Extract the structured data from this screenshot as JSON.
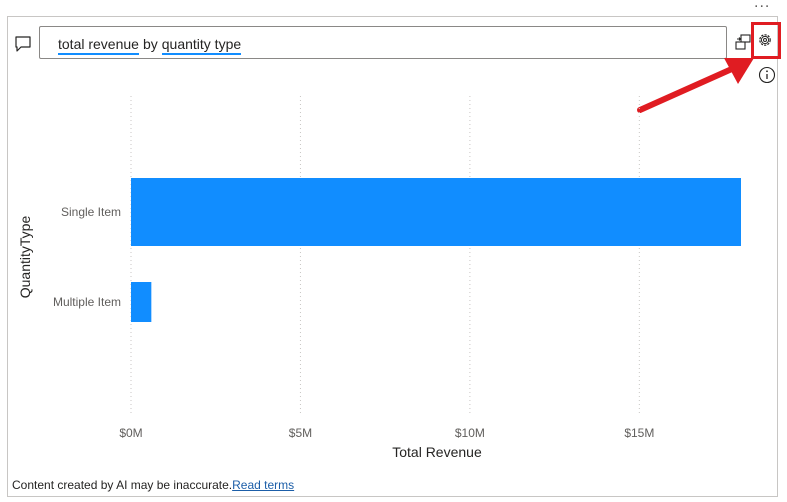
{
  "toolbar": {
    "more_options": "...",
    "query_terms": [
      {
        "text": "total revenue",
        "type": "field"
      },
      {
        "text": "by",
        "type": "plain"
      },
      {
        "text": "quantity type",
        "type": "field"
      }
    ]
  },
  "icons": {
    "comment": "comment-icon",
    "convert": "convert-to-visual-icon",
    "settings": "gear-icon",
    "info": "info-icon"
  },
  "colors": {
    "bar": "#118dff",
    "highlight": "#e01c22",
    "query_underline": "#118dff"
  },
  "chart_data": {
    "type": "bar",
    "orientation": "horizontal",
    "categories": [
      "Single Item",
      "Multiple Item"
    ],
    "values": [
      18000000,
      600000
    ],
    "xlabel": "Total Revenue",
    "ylabel": "QuantityType",
    "xticks": [
      "$0M",
      "$5M",
      "$10M",
      "$15M"
    ],
    "xtick_values": [
      0,
      5000000,
      10000000,
      15000000
    ],
    "xlim": [
      0,
      18000000
    ],
    "grid": true
  },
  "footer": {
    "disclaimer": "Content created by AI may be inaccurate.",
    "link": "Read terms"
  }
}
